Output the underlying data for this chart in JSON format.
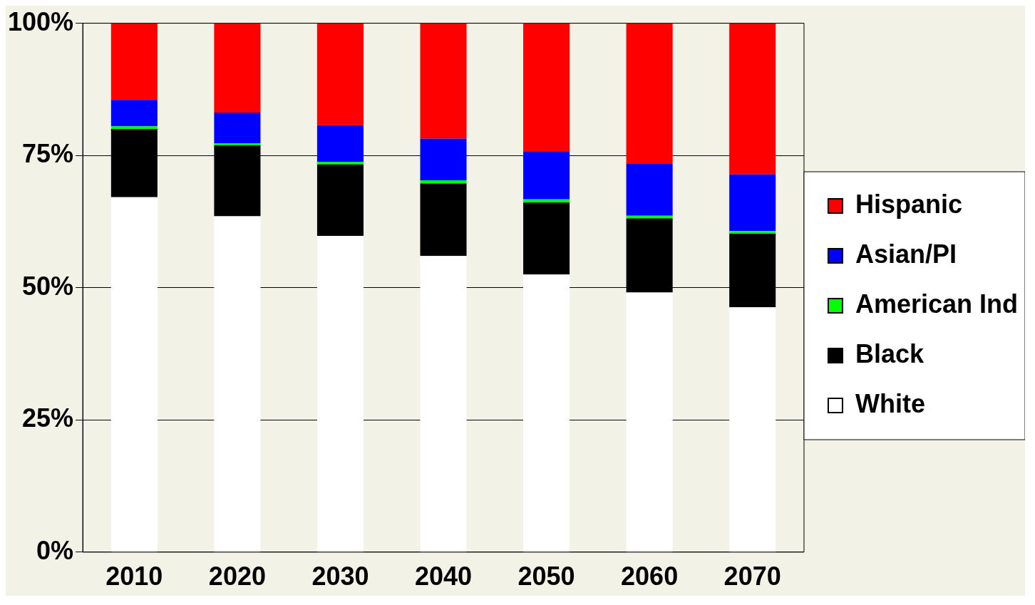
{
  "chart_data": {
    "type": "bar",
    "stacked": true,
    "categories": [
      "2010",
      "2020",
      "2030",
      "2040",
      "2050",
      "2060",
      "2070"
    ],
    "series": [
      {
        "name": "White",
        "color": "#ffffff",
        "values": [
          67.1,
          63.5,
          59.8,
          56.0,
          52.5,
          49.1,
          46.3
        ]
      },
      {
        "name": "Black",
        "color": "#000000",
        "values": [
          12.9,
          13.4,
          13.5,
          13.7,
          13.6,
          14.0,
          13.9
        ]
      },
      {
        "name": "American Ind",
        "color": "#00ff00",
        "values": [
          0.5,
          0.4,
          0.5,
          0.6,
          0.6,
          0.5,
          0.5
        ]
      },
      {
        "name": "Asian/PI",
        "color": "#0000ff",
        "values": [
          5.0,
          5.8,
          6.9,
          7.9,
          9.0,
          9.8,
          10.7
        ]
      },
      {
        "name": "Hispanic",
        "color": "#ff0000",
        "values": [
          14.5,
          16.9,
          19.3,
          21.8,
          24.3,
          26.6,
          28.6
        ]
      }
    ],
    "ylim": [
      0,
      100
    ],
    "yticks": [
      {
        "value": 0,
        "label": "0%"
      },
      {
        "value": 25,
        "label": "25%"
      },
      {
        "value": 50,
        "label": "50%"
      },
      {
        "value": 75,
        "label": "75%"
      },
      {
        "value": 100,
        "label": "100%"
      }
    ],
    "grid": "y",
    "legend": "right"
  }
}
